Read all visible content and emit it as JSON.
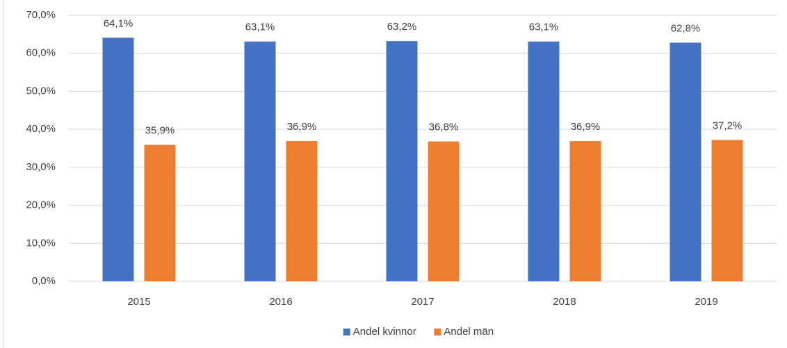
{
  "chart_data": {
    "type": "bar",
    "categories": [
      "2015",
      "2016",
      "2017",
      "2018",
      "2019"
    ],
    "series": [
      {
        "name": "Andel kvinnor",
        "color": "#4472c4",
        "values": [
          64.1,
          63.1,
          63.2,
          63.1,
          62.8
        ],
        "value_labels": [
          "64,1%",
          "63,1%",
          "63,2%",
          "63,1%",
          "62,8%"
        ]
      },
      {
        "name": "Andel män",
        "color": "#ed7d31",
        "values": [
          35.9,
          36.9,
          36.8,
          36.9,
          37.2
        ],
        "value_labels": [
          "35,9%",
          "36,9%",
          "36,8%",
          "36,9%",
          "37,2%"
        ]
      }
    ],
    "ylim": [
      0,
      70
    ],
    "yticks": [
      {
        "value": 0,
        "label": "0,0%"
      },
      {
        "value": 10,
        "label": "10,0%"
      },
      {
        "value": 20,
        "label": "20,0%"
      },
      {
        "value": 30,
        "label": "30,0%"
      },
      {
        "value": 40,
        "label": "40,0%"
      },
      {
        "value": 50,
        "label": "50,0%"
      },
      {
        "value": 60,
        "label": "60,0%"
      },
      {
        "value": 70,
        "label": "70,0%"
      }
    ],
    "grid": true,
    "legend": "bottom"
  }
}
